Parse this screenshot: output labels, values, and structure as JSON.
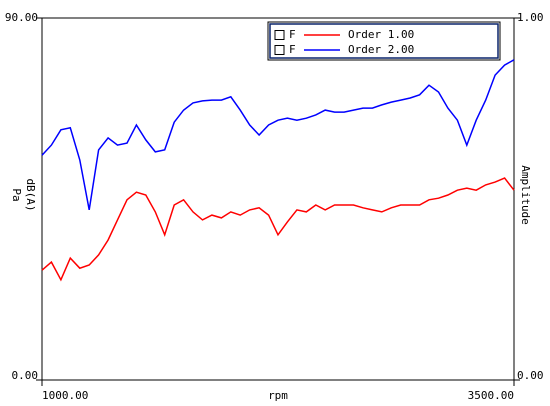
{
  "chart_data": {
    "type": "line",
    "x_label": "rpm",
    "y_label": [
      "Pa",
      "dB(A)"
    ],
    "y2_label": "Amplitude",
    "legend_flag": "F",
    "x": [
      1000,
      1050,
      1100,
      1150,
      1200,
      1250,
      1300,
      1350,
      1400,
      1450,
      1500,
      1550,
      1600,
      1650,
      1700,
      1750,
      1800,
      1850,
      1900,
      1950,
      2000,
      2050,
      2100,
      2150,
      2200,
      2250,
      2300,
      2350,
      2400,
      2450,
      2500,
      2550,
      2600,
      2650,
      2700,
      2750,
      2800,
      2850,
      2900,
      2950,
      3000,
      3050,
      3100,
      3150,
      3200,
      3250,
      3300,
      3350,
      3400,
      3450,
      3500
    ],
    "series": [
      {
        "name": "Order 1.00",
        "color": "#ff0000",
        "values": [
          27.3,
          29.3,
          24.9,
          30.3,
          27.8,
          28.6,
          31.1,
          34.8,
          39.8,
          44.8,
          46.7,
          46.0,
          41.8,
          36.1,
          43.5,
          44.8,
          41.8,
          39.8,
          41.0,
          40.3,
          41.8,
          41.0,
          42.3,
          42.8,
          41.0,
          36.1,
          39.3,
          42.3,
          41.8,
          43.5,
          42.3,
          43.5,
          43.5,
          43.5,
          42.8,
          42.3,
          41.8,
          42.8,
          43.5,
          43.5,
          43.5,
          44.8,
          45.2,
          46.0,
          47.2,
          47.7,
          47.2,
          48.5,
          49.2,
          50.2,
          47.2
        ]
      },
      {
        "name": "Order 2.00",
        "color": "#0000ff",
        "values": [
          55.9,
          58.4,
          62.2,
          62.7,
          54.7,
          42.3,
          57.2,
          60.2,
          58.4,
          58.9,
          63.4,
          59.7,
          56.7,
          57.2,
          64.1,
          67.1,
          68.9,
          69.4,
          69.6,
          69.6,
          70.4,
          67.1,
          63.4,
          60.9,
          63.4,
          64.6,
          65.1,
          64.6,
          65.1,
          65.9,
          67.1,
          66.6,
          66.6,
          67.1,
          67.6,
          67.6,
          68.4,
          69.1,
          69.6,
          70.1,
          70.9,
          73.3,
          71.6,
          67.6,
          64.6,
          58.4,
          64.6,
          69.6,
          75.8,
          78.3,
          79.6
        ]
      }
    ],
    "xlim": [
      1000,
      3500
    ],
    "xticks": [
      {
        "value": 1000,
        "label": "1000.00"
      },
      {
        "value": 3500,
        "label": "3500.00"
      }
    ],
    "ylim": [
      0,
      90
    ],
    "yticks": [
      {
        "value": 0,
        "label": "0.00"
      },
      {
        "value": 90,
        "label": "90.00"
      }
    ],
    "y2lim": [
      0,
      1
    ],
    "y2ticks": [
      {
        "value": 0,
        "label": "0.00"
      },
      {
        "value": 1,
        "label": "1.00"
      }
    ]
  }
}
